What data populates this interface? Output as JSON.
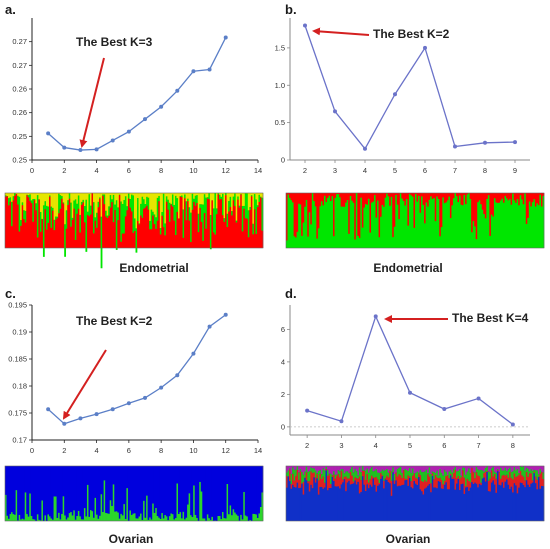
{
  "chart_data": [
    {
      "panel": "a.",
      "type": "line",
      "x": [
        1,
        2,
        3,
        4,
        5,
        6,
        7,
        8,
        9,
        10,
        11,
        12
      ],
      "values": [
        0.2525,
        0.2485,
        0.2478,
        0.248,
        0.2505,
        0.253,
        0.2565,
        0.26,
        0.2645,
        0.27,
        0.2705,
        0.2795
      ],
      "xlim": [
        0,
        14
      ],
      "ylim": [
        0.245,
        0.285
      ],
      "xticks": [
        "0",
        "2",
        "4",
        "6",
        "8",
        "10",
        "12",
        "14"
      ],
      "yticks": [
        "0.25",
        "0.25",
        "0.26",
        "0.26",
        "0.27",
        "0.27"
      ],
      "annotation": "The Best K=3",
      "structure": {
        "caption": "Endometrial",
        "colors": [
          "#ff0000",
          "#00e600",
          "#e6e600"
        ]
      },
      "color": "#5b7fc7"
    },
    {
      "panel": "b.",
      "type": "line",
      "x": [
        2,
        3,
        4,
        5,
        6,
        7,
        8,
        9
      ],
      "values": [
        1.8,
        0.65,
        0.15,
        0.88,
        1.5,
        0.18,
        0.23,
        0.24
      ],
      "xlim": [
        1.5,
        9.5
      ],
      "ylim": [
        0,
        1.9
      ],
      "xticks": [
        "2",
        "3",
        "4",
        "5",
        "6",
        "7",
        "8",
        "9"
      ],
      "yticks": [
        "0",
        "0.5",
        "1.0",
        "1.5"
      ],
      "annotation": "The Best K=2",
      "structure": {
        "caption": "Endometrial",
        "colors": [
          "#00e600",
          "#ff0000"
        ]
      },
      "color": "#6b73c9"
    },
    {
      "panel": "c.",
      "type": "line",
      "x": [
        1,
        2,
        3,
        4,
        5,
        6,
        7,
        8,
        9,
        10,
        11,
        12
      ],
      "values": [
        0.1757,
        0.173,
        0.174,
        0.1748,
        0.1757,
        0.1768,
        0.1778,
        0.1797,
        0.182,
        0.186,
        0.191,
        0.1932
      ],
      "xlim": [
        0,
        14
      ],
      "ylim": [
        0.17,
        0.195
      ],
      "xticks": [
        "0",
        "2",
        "4",
        "6",
        "8",
        "10",
        "12",
        "14"
      ],
      "yticks": [
        "0.17",
        "0.175",
        "0.18",
        "0.185",
        "0.19",
        "0.195"
      ],
      "annotation": "The Best K=2",
      "structure": {
        "caption": "Ovarian",
        "colors": [
          "#0000dd",
          "#2bd62b"
        ]
      },
      "color": "#5b7fc7"
    },
    {
      "panel": "d.",
      "type": "line",
      "x": [
        2,
        3,
        4,
        5,
        6,
        7,
        8
      ],
      "values": [
        1.0,
        0.35,
        6.8,
        2.1,
        1.1,
        1.75,
        0.15
      ],
      "xlim": [
        1.5,
        8.5
      ],
      "ylim": [
        -0.5,
        7.5
      ],
      "xticks": [
        "2",
        "3",
        "4",
        "5",
        "6",
        "7",
        "8"
      ],
      "yticks": [
        "0",
        "2",
        "4",
        "6"
      ],
      "annotation": "The Best K=4",
      "structure": {
        "caption": "Ovarian",
        "colors": [
          "#1030c8",
          "#e02020",
          "#20c020",
          "#b020b0"
        ]
      },
      "color": "#6b73c9"
    }
  ]
}
